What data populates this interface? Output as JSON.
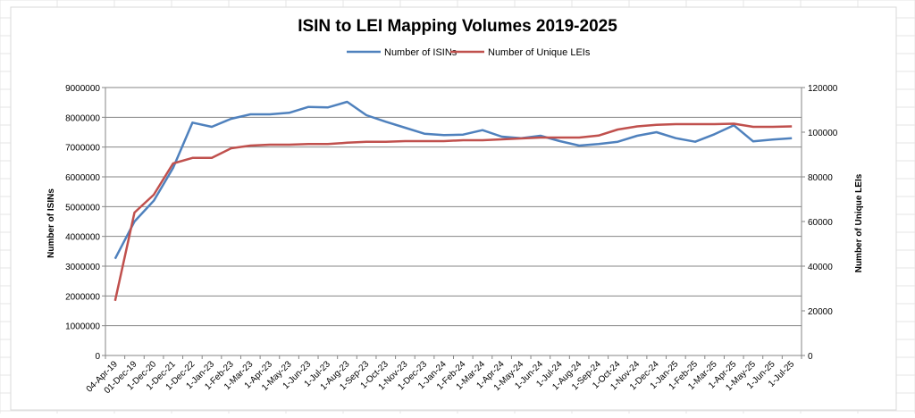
{
  "chart_data": {
    "type": "line",
    "title": "ISIN to LEI Mapping Volumes 2019-2025",
    "xlabel": "",
    "ylabel": "Number of ISINs",
    "y2label": "Number of Unique LEIs",
    "ylim": [
      0,
      9000000
    ],
    "y2lim": [
      0,
      120000
    ],
    "yticks": [
      0,
      1000000,
      2000000,
      3000000,
      4000000,
      5000000,
      6000000,
      7000000,
      8000000,
      9000000
    ],
    "y2ticks": [
      0,
      20000,
      40000,
      60000,
      80000,
      100000,
      120000
    ],
    "grid": true,
    "legend_position": "top-center",
    "categories": [
      "04-Apr-19",
      "01-Dec-19",
      "1-Dec-20",
      "1-Dec-21",
      "1-Dec-22",
      "1-Jan-23",
      "1-Feb-23",
      "1-Mar-23",
      "1-Apr-23",
      "1-May-23",
      "1-Jun-23",
      "1-Jul-23",
      "1-Aug-23",
      "1-Sep-23",
      "1-Oct-23",
      "1-Nov-23",
      "1-Dec-23",
      "1-Jan-24",
      "1-Feb-24",
      "1-Mar-24",
      "1-Apr-24",
      "1-May-24",
      "1-Jun-24",
      "1-Jul-24",
      "1-Aug-24",
      "1-Sep-24",
      "1-Oct-24",
      "1-Nov-24",
      "1-Dec-24",
      "1-Jan-25",
      "1-Feb-25",
      "1-Mar-25",
      "1-Apr-25",
      "1-May-25",
      "1-Jun-25",
      "1-Jul-25"
    ],
    "series": [
      {
        "name": "Number of ISINs",
        "axis": "left",
        "color": "#4F81BD",
        "values": [
          3250000,
          4500000,
          5200000,
          6300000,
          7820000,
          7680000,
          7950000,
          8100000,
          8100000,
          8150000,
          8350000,
          8330000,
          8520000,
          8070000,
          7850000,
          7650000,
          7450000,
          7400000,
          7420000,
          7570000,
          7350000,
          7300000,
          7380000,
          7200000,
          7050000,
          7100000,
          7180000,
          7380000,
          7500000,
          7300000,
          7180000,
          7430000,
          7730000,
          7190000,
          7250000,
          7300000
        ]
      },
      {
        "name": "Number of Unique LEIs",
        "axis": "right",
        "color": "#C0504D",
        "values": [
          24500,
          64000,
          72000,
          86000,
          88500,
          88500,
          92800,
          94000,
          94400,
          94400,
          94700,
          94700,
          95300,
          95700,
          95700,
          96000,
          96000,
          96000,
          96400,
          96400,
          96800,
          97200,
          97600,
          97600,
          97600,
          98500,
          101200,
          102600,
          103300,
          103600,
          103600,
          103600,
          103800,
          102400,
          102400,
          102600
        ]
      }
    ]
  }
}
